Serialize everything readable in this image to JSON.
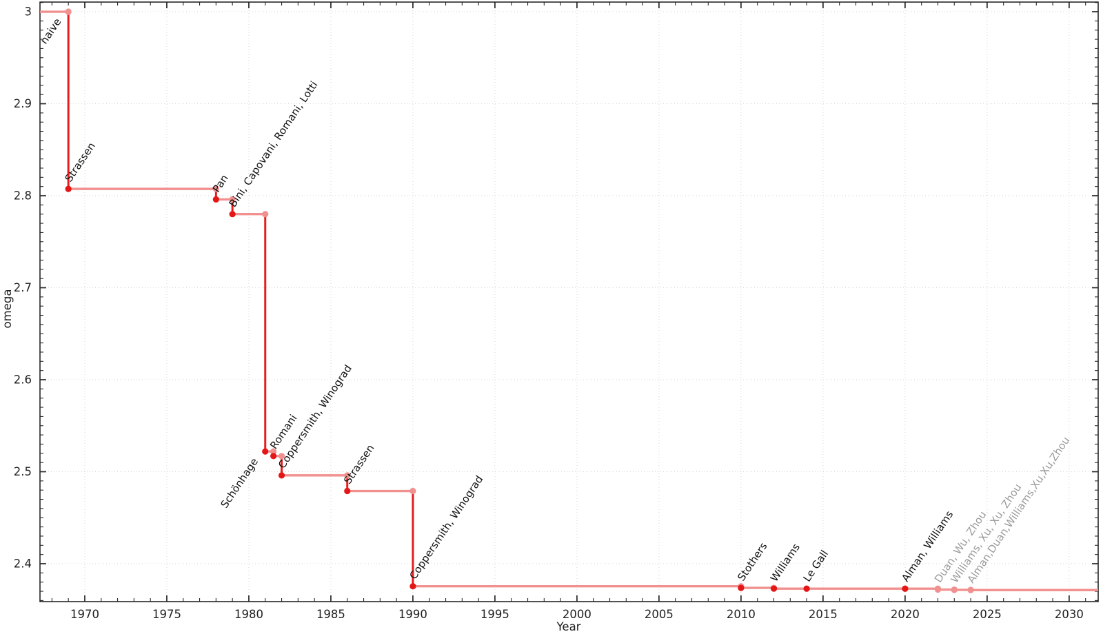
{
  "chart_data": {
    "type": "line",
    "subtype": "step-post",
    "title": "",
    "xlabel": "Year",
    "ylabel": "omega",
    "xlim": [
      1967.27,
      2031.77
    ],
    "ylim": [
      2.3588,
      3.0105
    ],
    "grid": "dotted-major",
    "legend": "none",
    "x_ticks": [
      {
        "v": 1970,
        "label": "1970"
      },
      {
        "v": 1975,
        "label": "1975"
      },
      {
        "v": 1980,
        "label": "1980"
      },
      {
        "v": 1985,
        "label": "1985"
      },
      {
        "v": 1990,
        "label": "1990"
      },
      {
        "v": 1995,
        "label": "1995"
      },
      {
        "v": 2000,
        "label": "2000"
      },
      {
        "v": 2005,
        "label": "2005"
      },
      {
        "v": 2010,
        "label": "2010"
      },
      {
        "v": 2015,
        "label": "2015"
      },
      {
        "v": 2020,
        "label": "2020"
      },
      {
        "v": 2025,
        "label": "2025"
      },
      {
        "v": 2030,
        "label": "2030"
      }
    ],
    "y_ticks": [
      {
        "v": 2.4,
        "label": "2.4"
      },
      {
        "v": 2.5,
        "label": "2.5"
      },
      {
        "v": 2.6,
        "label": "2.6"
      },
      {
        "v": 2.7,
        "label": "2.7"
      },
      {
        "v": 2.8,
        "label": "2.8"
      },
      {
        "v": 2.9,
        "label": "2.9"
      },
      {
        "v": 3.0,
        "label": "3"
      }
    ],
    "start": {
      "label": "naive",
      "omega": 3.0,
      "label_side": "below"
    },
    "points": [
      {
        "year": 1969,
        "omega": 2.8074,
        "label": "Strassen",
        "status": "confirmed",
        "label_side": "above"
      },
      {
        "year": 1978,
        "omega": 2.796,
        "label": "Pan",
        "status": "confirmed",
        "label_side": "above"
      },
      {
        "year": 1979,
        "omega": 2.78,
        "label": "Bini, Capovani, Romani, Lotti",
        "status": "confirmed",
        "label_side": "above"
      },
      {
        "year": 1981,
        "omega": 2.522,
        "label": "Schönhage",
        "status": "confirmed",
        "label_side": "below"
      },
      {
        "year": 1981.5,
        "omega": 2.517,
        "label": "Romani",
        "status": "confirmed",
        "label_side": "above"
      },
      {
        "year": 1982,
        "omega": 2.496,
        "label": "Coppersmith, Winograd",
        "status": "confirmed",
        "label_side": "above"
      },
      {
        "year": 1986,
        "omega": 2.479,
        "label": "Strassen",
        "status": "confirmed",
        "label_side": "above"
      },
      {
        "year": 1990,
        "omega": 2.3755,
        "label": "Coppersmith, Winograd",
        "status": "confirmed",
        "label_side": "above"
      },
      {
        "year": 2010,
        "omega": 2.3737,
        "label": "Stothers",
        "status": "confirmed",
        "label_side": "above"
      },
      {
        "year": 2012,
        "omega": 2.3729,
        "label": "Williams",
        "status": "confirmed",
        "label_side": "above"
      },
      {
        "year": 2014,
        "omega": 2.37286,
        "label": "Le Gall",
        "status": "confirmed",
        "label_side": "above"
      },
      {
        "year": 2020,
        "omega": 2.37286,
        "label": "Alman, Williams",
        "status": "confirmed",
        "label_side": "above"
      },
      {
        "year": 2022,
        "omega": 2.37187,
        "label": "Duan, Wu, Zhou",
        "status": "tentative",
        "label_side": "above"
      },
      {
        "year": 2023,
        "omega": 2.37155,
        "label": "Williams, Xu, Xu, Zhou",
        "status": "tentative",
        "label_side": "above"
      },
      {
        "year": 2024,
        "omega": 2.37134,
        "label": "Alman,Duan,Williams,Xu,Xu,Zhou",
        "status": "tentative",
        "label_side": "above"
      }
    ]
  },
  "style": {
    "flat_line_color": "#f0908f",
    "drop_line_color": "#e81c1c",
    "confirmed_point_color": "#e41616",
    "tentative_point_color": "#f0908f",
    "corner_point_color": "#f0908f",
    "confirmed_label_color": "#111111",
    "tentative_label_color": "#9b9b9b",
    "grid_color": "#d6d6d6",
    "axis_color": "#262626",
    "tick_label_color": "#1f1f1f",
    "background_color": "#ffffff"
  }
}
